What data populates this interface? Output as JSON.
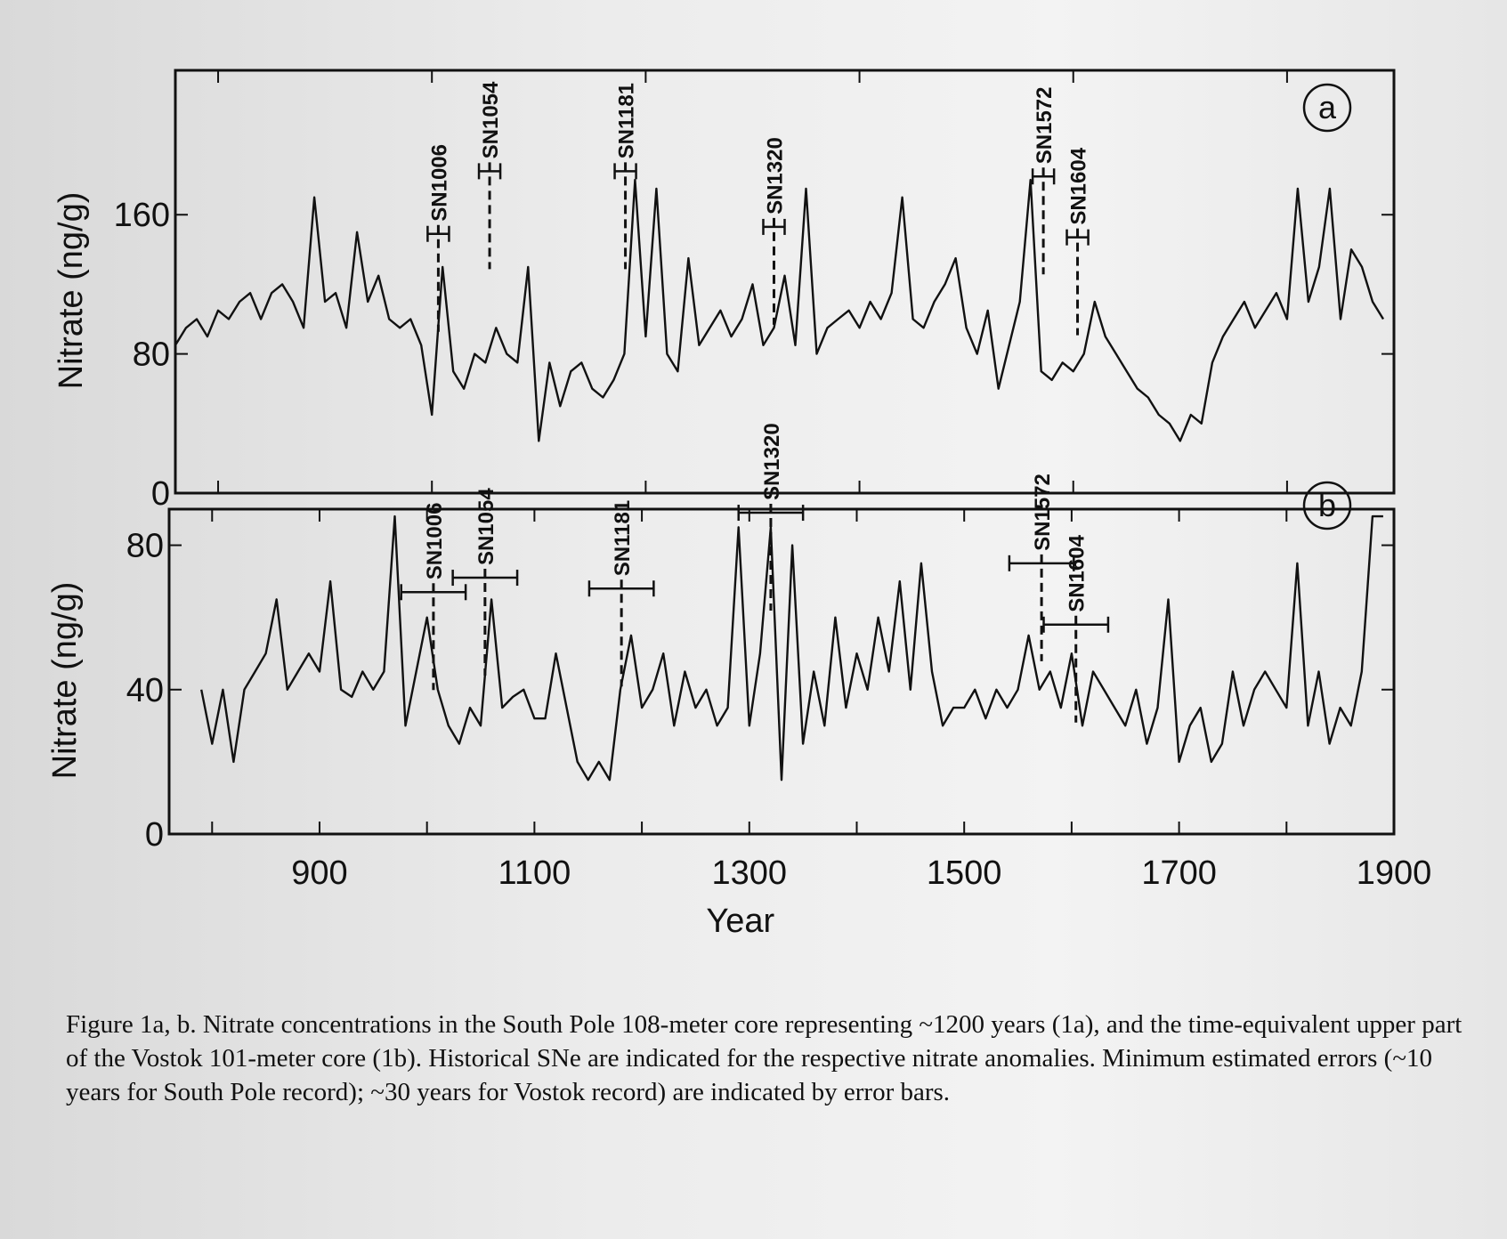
{
  "chart_data": [
    {
      "type": "line",
      "panel_label": "a",
      "ylabel": "Nitrate (ng/g)",
      "color": "#111111",
      "xlim": [
        760,
        1900
      ],
      "xminorticks": [
        800,
        1000,
        1200,
        1400,
        1600,
        1800
      ],
      "ylim": [
        0,
        243
      ],
      "yticks": [
        0,
        80,
        160
      ],
      "x": [
        760,
        770,
        780,
        790,
        800,
        810,
        820,
        830,
        840,
        850,
        860,
        870,
        880,
        890,
        900,
        910,
        920,
        930,
        940,
        950,
        960,
        970,
        980,
        990,
        1000,
        1010,
        1020,
        1030,
        1040,
        1050,
        1060,
        1070,
        1080,
        1090,
        1100,
        1110,
        1120,
        1130,
        1140,
        1150,
        1160,
        1170,
        1180,
        1190,
        1200,
        1210,
        1220,
        1230,
        1240,
        1250,
        1260,
        1270,
        1280,
        1290,
        1300,
        1310,
        1320,
        1330,
        1340,
        1350,
        1360,
        1370,
        1380,
        1390,
        1400,
        1410,
        1420,
        1430,
        1440,
        1450,
        1460,
        1470,
        1480,
        1490,
        1500,
        1510,
        1520,
        1530,
        1540,
        1550,
        1560,
        1570,
        1580,
        1590,
        1600,
        1610,
        1620,
        1630,
        1640,
        1650,
        1660,
        1670,
        1680,
        1690,
        1700,
        1710,
        1720,
        1730,
        1740,
        1750,
        1760,
        1770,
        1780,
        1790,
        1800,
        1810,
        1820,
        1830,
        1840,
        1850,
        1860,
        1870,
        1880,
        1890
      ],
      "values": [
        85,
        95,
        100,
        90,
        105,
        100,
        110,
        115,
        100,
        115,
        120,
        110,
        95,
        170,
        110,
        115,
        95,
        150,
        110,
        125,
        100,
        95,
        100,
        85,
        45,
        130,
        70,
        60,
        80,
        75,
        95,
        80,
        75,
        130,
        30,
        75,
        50,
        70,
        75,
        60,
        55,
        65,
        80,
        180,
        90,
        175,
        80,
        70,
        135,
        85,
        95,
        105,
        90,
        100,
        120,
        85,
        95,
        125,
        85,
        175,
        80,
        95,
        100,
        105,
        95,
        110,
        100,
        115,
        170,
        100,
        95,
        110,
        120,
        135,
        95,
        80,
        105,
        60,
        85,
        110,
        180,
        70,
        65,
        75,
        70,
        80,
        110,
        90,
        80,
        70,
        60,
        55,
        45,
        40,
        30,
        45,
        40,
        75,
        90,
        100,
        110,
        95,
        105,
        115,
        100,
        175,
        110,
        130,
        175,
        100,
        140,
        130,
        110,
        100
      ],
      "annotations": [
        {
          "label": "SN1006",
          "x": 1006,
          "y": 149,
          "error": 10
        },
        {
          "label": "SN1054",
          "x": 1054,
          "y": 185,
          "error": 10
        },
        {
          "label": "SN1181",
          "x": 1181,
          "y": 185,
          "error": 10
        },
        {
          "label": "SN1320",
          "x": 1320,
          "y": 153,
          "error": 10
        },
        {
          "label": "SN1572",
          "x": 1572,
          "y": 182,
          "error": 10
        },
        {
          "label": "SN1604",
          "x": 1604,
          "y": 147,
          "error": 10
        }
      ]
    },
    {
      "type": "line",
      "panel_label": "b",
      "ylabel": "Nitrate (ng/g)",
      "xlabel": "Year",
      "color": "#111111",
      "xlim": [
        760,
        1900
      ],
      "xticks": [
        900,
        1100,
        1300,
        1500,
        1700,
        1900
      ],
      "xminorticks": [
        800,
        1000,
        1200,
        1400,
        1600,
        1800
      ],
      "ylim": [
        0,
        90
      ],
      "yticks": [
        0,
        40,
        80
      ],
      "x": [
        790,
        800,
        810,
        820,
        830,
        840,
        850,
        860,
        870,
        880,
        890,
        900,
        910,
        920,
        930,
        940,
        950,
        960,
        970,
        980,
        990,
        1000,
        1010,
        1020,
        1030,
        1040,
        1050,
        1060,
        1070,
        1080,
        1090,
        1100,
        1110,
        1120,
        1130,
        1140,
        1150,
        1160,
        1170,
        1180,
        1190,
        1200,
        1210,
        1220,
        1230,
        1240,
        1250,
        1260,
        1270,
        1280,
        1290,
        1300,
        1310,
        1320,
        1330,
        1340,
        1350,
        1360,
        1370,
        1380,
        1390,
        1400,
        1410,
        1420,
        1430,
        1440,
        1450,
        1460,
        1470,
        1480,
        1490,
        1500,
        1510,
        1520,
        1530,
        1540,
        1550,
        1560,
        1570,
        1580,
        1590,
        1600,
        1610,
        1620,
        1630,
        1640,
        1650,
        1660,
        1670,
        1680,
        1690,
        1700,
        1710,
        1720,
        1730,
        1740,
        1750,
        1760,
        1770,
        1780,
        1790,
        1800,
        1810,
        1820,
        1830,
        1840,
        1850,
        1860,
        1870,
        1880,
        1890
      ],
      "values": [
        40,
        25,
        40,
        20,
        40,
        45,
        50,
        65,
        40,
        45,
        50,
        45,
        70,
        40,
        38,
        45,
        40,
        45,
        88,
        30,
        45,
        60,
        40,
        30,
        25,
        35,
        30,
        65,
        35,
        38,
        40,
        32,
        32,
        50,
        35,
        20,
        15,
        20,
        15,
        40,
        55,
        35,
        40,
        50,
        30,
        45,
        35,
        40,
        30,
        35,
        85,
        30,
        50,
        85,
        15,
        80,
        25,
        45,
        30,
        60,
        35,
        50,
        40,
        60,
        45,
        70,
        40,
        75,
        45,
        30,
        35,
        35,
        40,
        32,
        40,
        35,
        40,
        55,
        40,
        45,
        35,
        50,
        30,
        45,
        40,
        35,
        30,
        40,
        25,
        35,
        65,
        20,
        30,
        35,
        20,
        25,
        45,
        30,
        40,
        45,
        40,
        35,
        75,
        30,
        45,
        25,
        35,
        30,
        45,
        88,
        88
      ],
      "annotations": [
        {
          "label": "SN1006",
          "x": 1006,
          "y": 67,
          "error": 30
        },
        {
          "label": "SN1054",
          "x": 1054,
          "y": 71,
          "error": 30
        },
        {
          "label": "SN1181",
          "x": 1181,
          "y": 68,
          "error": 30
        },
        {
          "label": "SN1320",
          "x": 1320,
          "y": 89,
          "error": 30
        },
        {
          "label": "SN1572",
          "x": 1572,
          "y": 75,
          "error": 30
        },
        {
          "label": "SN1604",
          "x": 1604,
          "y": 58,
          "error": 30
        }
      ]
    }
  ],
  "caption": "Figure 1a, b.  Nitrate concentrations in the South Pole 108-meter core representing ~1200 years (1a), and the time-equivalent upper part of the Vostok 101-meter core (1b).  Historical SNe are indicated for the respective nitrate anomalies.  Minimum estimated errors (~10 years for South Pole record); ~30 years for Vostok record) are indicated by error bars."
}
